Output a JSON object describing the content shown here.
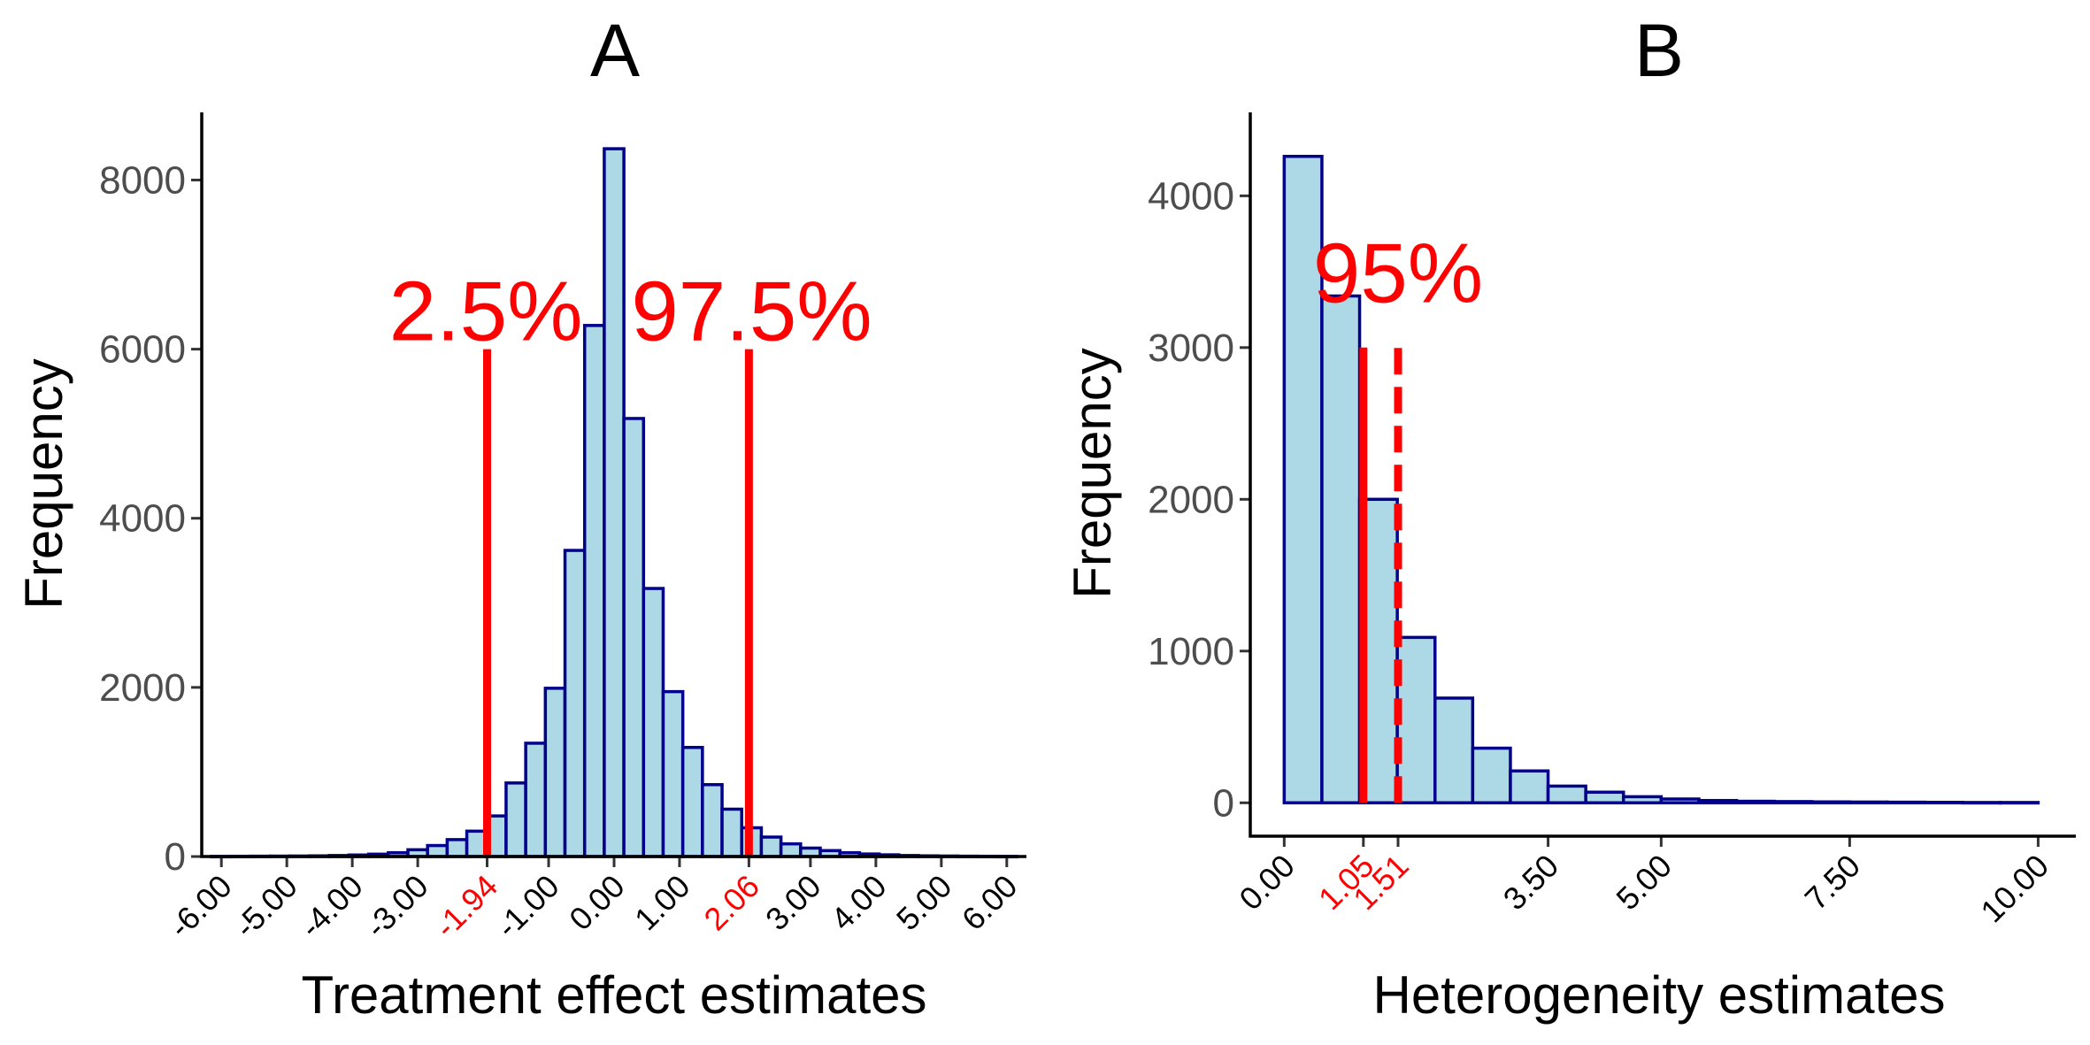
{
  "chart_data": [
    {
      "panel": "A",
      "type": "bar",
      "title": "A",
      "xlabel": "Treatment effect estimates",
      "ylabel": "Frequency",
      "xlim": [
        -6.3,
        6.3
      ],
      "ylim": [
        0,
        8800
      ],
      "bin_width": 0.3,
      "bin_centers": [
        -6.0,
        -5.7,
        -5.4,
        -5.1,
        -4.8,
        -4.5,
        -4.2,
        -3.9,
        -3.6,
        -3.3,
        -3.0,
        -2.7,
        -2.4,
        -2.1,
        -1.8,
        -1.5,
        -1.2,
        -0.9,
        -0.6,
        -0.3,
        0.0,
        0.3,
        0.6,
        0.9,
        1.2,
        1.5,
        1.8,
        2.1,
        2.4,
        2.7,
        3.0,
        3.3,
        3.6,
        3.9,
        4.2,
        4.5,
        4.8,
        5.1,
        5.4,
        5.7,
        6.0
      ],
      "values": [
        2,
        3,
        4,
        5,
        6,
        8,
        12,
        18,
        28,
        45,
        80,
        130,
        200,
        300,
        480,
        870,
        1340,
        1990,
        3620,
        6280,
        8370,
        5180,
        3170,
        1950,
        1290,
        850,
        560,
        340,
        230,
        150,
        100,
        70,
        45,
        30,
        20,
        12,
        8,
        6,
        4,
        3,
        2
      ],
      "yticks": [
        0,
        2000,
        4000,
        6000,
        8000
      ],
      "ytick_labels": [
        "0",
        "2000",
        "4000",
        "6000",
        "8000"
      ],
      "xticks": [
        -6,
        -5,
        -4,
        -3,
        -1.94,
        -1,
        0,
        1,
        2.06,
        3,
        4,
        5,
        6
      ],
      "xtick_labels": [
        "-6.00",
        "-5.00",
        "-4.00",
        "-3.00",
        "-1.94",
        "-1.00",
        "0.00",
        "1.00",
        "2.06",
        "3.00",
        "4.00",
        "5.00",
        "6.00"
      ],
      "highlighted_ticks": [
        "-1.94",
        "2.06"
      ],
      "vlines": [
        {
          "x": -1.94,
          "y_top": 6000,
          "style": "solid",
          "color": "#ff0000"
        },
        {
          "x": 2.06,
          "y_top": 6000,
          "style": "solid",
          "color": "#ff0000"
        }
      ],
      "annotations": [
        {
          "text": "2.5%",
          "x": -1.94,
          "y": 6000,
          "color": "#ff0000"
        },
        {
          "text": "97.5%",
          "x": 2.06,
          "y": 6000,
          "color": "#ff0000"
        }
      ]
    },
    {
      "panel": "B",
      "type": "bar",
      "title": "B",
      "xlabel": "Heterogeneity estimates",
      "ylabel": "Frequency",
      "xlim": [
        -0.45,
        10.5
      ],
      "ylim": [
        -220,
        4550
      ],
      "bin_width": 0.5,
      "bin_centers": [
        0.25,
        0.75,
        1.25,
        1.75,
        2.25,
        2.75,
        3.25,
        3.75,
        4.25,
        4.75,
        5.25,
        5.75,
        6.25,
        6.75,
        7.25,
        7.75,
        8.25,
        8.75,
        9.25,
        9.75
      ],
      "values": [
        4260,
        3340,
        2000,
        1090,
        690,
        360,
        210,
        110,
        70,
        40,
        25,
        15,
        10,
        8,
        6,
        5,
        4,
        3,
        2,
        2
      ],
      "yticks": [
        0,
        1000,
        2000,
        3000,
        4000
      ],
      "ytick_labels": [
        "0",
        "1000",
        "2000",
        "3000",
        "4000"
      ],
      "xticks": [
        0,
        1.05,
        1.51,
        3.5,
        5,
        7.5,
        10
      ],
      "xtick_labels": [
        "0.00",
        "1.05",
        "1.51",
        "3.50",
        "5.00",
        "7.50",
        "10.00"
      ],
      "highlighted_ticks": [
        "1.05",
        "1.51"
      ],
      "vlines": [
        {
          "x": 1.05,
          "y_top": 3000,
          "style": "solid",
          "color": "#ff0000"
        },
        {
          "x": 1.51,
          "y_top": 3000,
          "style": "dashed",
          "color": "#ff0000"
        }
      ],
      "annotations": [
        {
          "text": "95%",
          "x": 1.51,
          "y": 3300,
          "color": "#ff0000"
        }
      ]
    }
  ]
}
